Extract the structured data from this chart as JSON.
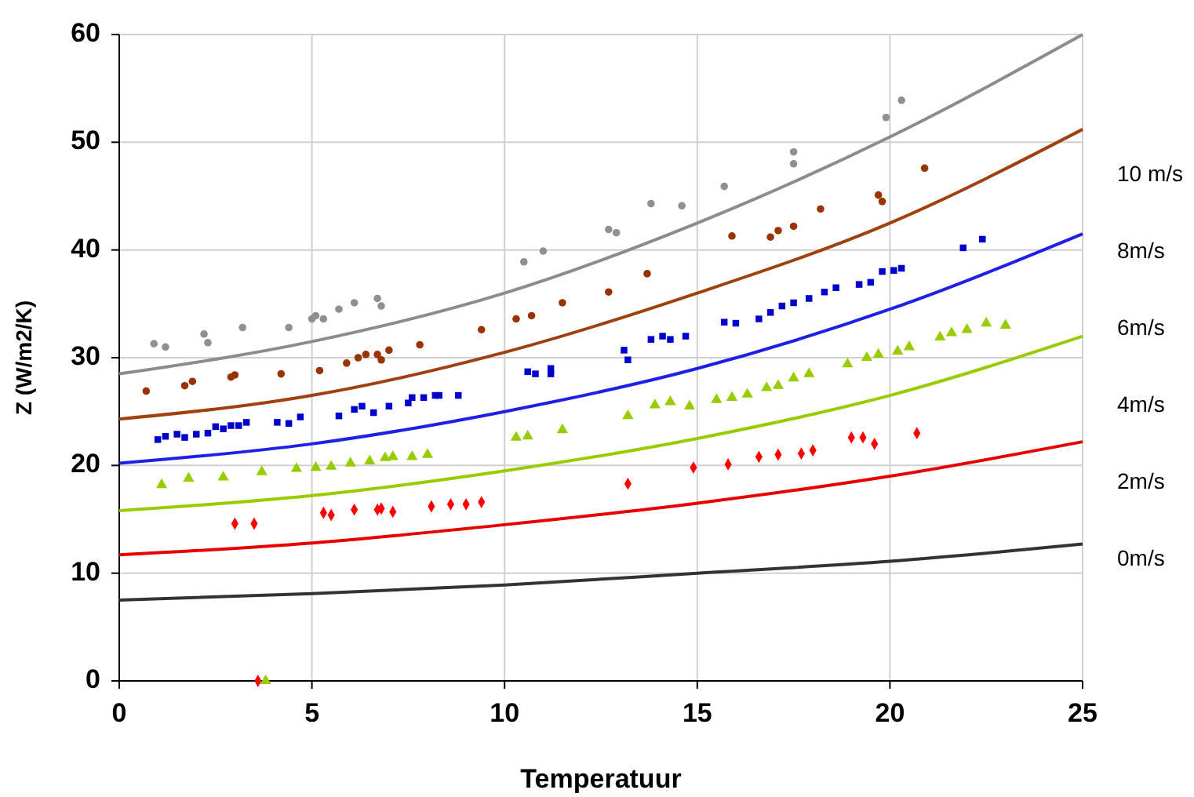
{
  "chart_data": {
    "type": "scatter",
    "xlabel": "Temperatuur",
    "ylabel": "Z (W/m2/K)",
    "xlim": [
      0,
      25
    ],
    "ylim": [
      0,
      60
    ],
    "xticks": [
      0,
      5,
      10,
      15,
      20,
      25
    ],
    "yticks": [
      0,
      10,
      20,
      30,
      40,
      50,
      60
    ],
    "grid": true,
    "series": [
      {
        "type": "line",
        "name": "10 m/s",
        "color": "#8c8c8c",
        "marker": "none",
        "x": [
          0,
          5,
          10,
          15,
          20,
          25
        ],
        "values": [
          28.5,
          31.5,
          36,
          42.5,
          50.5,
          60
        ]
      },
      {
        "type": "line",
        "name": "8m/s",
        "color": "#a0400f",
        "marker": "none",
        "x": [
          0,
          5,
          10,
          15,
          20,
          25
        ],
        "values": [
          24.3,
          26.5,
          30.5,
          36,
          42.5,
          51.2
        ]
      },
      {
        "type": "line",
        "name": "6m/s",
        "color": "#1f1fe6",
        "marker": "none",
        "x": [
          0,
          5,
          10,
          15,
          20,
          25
        ],
        "values": [
          20.2,
          22,
          25,
          29,
          34.5,
          41.5
        ]
      },
      {
        "type": "line",
        "name": "4m/s",
        "color": "#99cc00",
        "marker": "none",
        "x": [
          0,
          5,
          10,
          15,
          20,
          25
        ],
        "values": [
          15.8,
          17.2,
          19.5,
          22.5,
          26.5,
          32
        ]
      },
      {
        "type": "line",
        "name": "2m/s",
        "color": "#e60000",
        "marker": "none",
        "x": [
          0,
          5,
          10,
          15,
          20,
          25
        ],
        "values": [
          11.7,
          12.8,
          14.5,
          16.5,
          19,
          22.2
        ]
      },
      {
        "type": "line",
        "name": "0m/s",
        "color": "#333333",
        "marker": "none",
        "x": [
          0,
          5,
          10,
          15,
          20,
          25
        ],
        "values": [
          7.5,
          8.1,
          8.9,
          10,
          11.1,
          12.7
        ]
      },
      {
        "color": "#909090",
        "marker": "circle",
        "x": [
          0.9,
          1.2,
          2.2,
          2.3,
          3.2,
          4.4,
          5,
          5.1,
          5.3,
          5.7,
          6.1,
          6.7,
          6.8,
          10.5,
          11,
          12.7,
          12.9,
          13.8,
          14.6,
          15.7,
          17.5,
          17.5,
          19.9,
          20.3
        ],
        "values": [
          31.3,
          31,
          32.2,
          31.4,
          32.8,
          32.8,
          33.6,
          33.9,
          33.6,
          34.5,
          35.1,
          35.5,
          34.8,
          38.9,
          39.9,
          41.9,
          41.6,
          44.3,
          44.1,
          45.9,
          48,
          49.1,
          52.3,
          53.9
        ]
      },
      {
        "color": "#993300",
        "marker": "circle",
        "x": [
          0.7,
          1.7,
          1.9,
          2.9,
          3,
          4.2,
          5.2,
          5.9,
          6.2,
          6.4,
          6.7,
          7,
          6.8,
          7.8,
          9.4,
          10.3,
          10.7,
          11.5,
          12.7,
          13.7,
          15.9,
          16.9,
          17.1,
          17.5,
          18.2,
          19.7,
          19.8,
          20.9
        ],
        "values": [
          26.9,
          27.4,
          27.8,
          28.2,
          28.4,
          28.5,
          28.8,
          29.5,
          30,
          30.3,
          30.3,
          30.7,
          29.8,
          31.2,
          32.6,
          33.6,
          33.9,
          35.1,
          36.1,
          37.8,
          41.3,
          41.2,
          41.8,
          42.2,
          43.8,
          45.1,
          44.5,
          47.6
        ]
      },
      {
        "color": "#0000cc",
        "marker": "square",
        "x": [
          1,
          1.2,
          1.5,
          1.7,
          2,
          2.3,
          2.5,
          2.7,
          2.9,
          3.1,
          3.3,
          4.1,
          4.4,
          4.7,
          5.7,
          6.1,
          6.3,
          6.6,
          7,
          7.5,
          7.6,
          7.9,
          8.2,
          8.3,
          8.8,
          10.6,
          10.8,
          11.2,
          11.2,
          13.1,
          13.2,
          13.8,
          14.1,
          14.3,
          14.7,
          15.7,
          16,
          16.6,
          16.9,
          17.2,
          17.5,
          17.9,
          18.3,
          18.6,
          19.2,
          19.5,
          19.8,
          20.1,
          20.3,
          21.9,
          22.4
        ],
        "values": [
          22.4,
          22.7,
          22.9,
          22.6,
          22.9,
          23,
          23.6,
          23.4,
          23.7,
          23.7,
          24,
          24,
          23.9,
          24.5,
          24.6,
          25.2,
          25.5,
          24.9,
          25.5,
          25.8,
          26.3,
          26.3,
          26.5,
          26.5,
          26.5,
          28.7,
          28.5,
          29,
          28.5,
          30.7,
          29.8,
          31.7,
          32,
          31.7,
          32,
          33.3,
          33.2,
          33.6,
          34.2,
          34.8,
          35.1,
          35.5,
          36.1,
          36.5,
          36.8,
          37,
          38,
          38.1,
          38.3,
          40.2,
          41
        ]
      },
      {
        "color": "#99cc00",
        "marker": "triangle",
        "x": [
          1.1,
          1.8,
          2.7,
          3.7,
          4.6,
          5.1,
          5.5,
          6,
          6.5,
          6.9,
          7.1,
          7.6,
          8,
          10.3,
          10.6,
          11.5,
          13.2,
          13.9,
          14.3,
          14.8,
          15.5,
          15.9,
          16.3,
          16.8,
          17.1,
          17.5,
          17.9,
          18.9,
          19.4,
          19.7,
          20.2,
          20.5,
          21.3,
          21.6,
          22,
          22.5,
          23,
          3.8
        ],
        "values": [
          18.2,
          18.8,
          18.9,
          19.4,
          19.7,
          19.8,
          19.9,
          20.2,
          20.4,
          20.7,
          20.8,
          20.8,
          21,
          22.6,
          22.7,
          23.3,
          24.6,
          25.6,
          25.9,
          25.5,
          26.1,
          26.3,
          26.6,
          27.2,
          27.4,
          28.1,
          28.5,
          29.4,
          30,
          30.3,
          30.6,
          31,
          31.9,
          32.3,
          32.6,
          33.2,
          33,
          0
        ]
      },
      {
        "color": "#ff0000",
        "marker": "diamond",
        "x": [
          3,
          3.5,
          5.3,
          5.5,
          6.1,
          6.7,
          6.8,
          7.1,
          8.1,
          8.6,
          9,
          9.4,
          13.2,
          14.9,
          15.8,
          16.6,
          17.1,
          17.7,
          18,
          19,
          19.3,
          19.6,
          20.7,
          3.6
        ],
        "values": [
          14.6,
          14.6,
          15.6,
          15.4,
          15.9,
          15.9,
          16,
          15.7,
          16.2,
          16.4,
          16.4,
          16.6,
          18.3,
          19.8,
          20.1,
          20.8,
          21,
          21.1,
          21.4,
          22.6,
          22.6,
          22,
          23,
          0
        ]
      }
    ]
  }
}
